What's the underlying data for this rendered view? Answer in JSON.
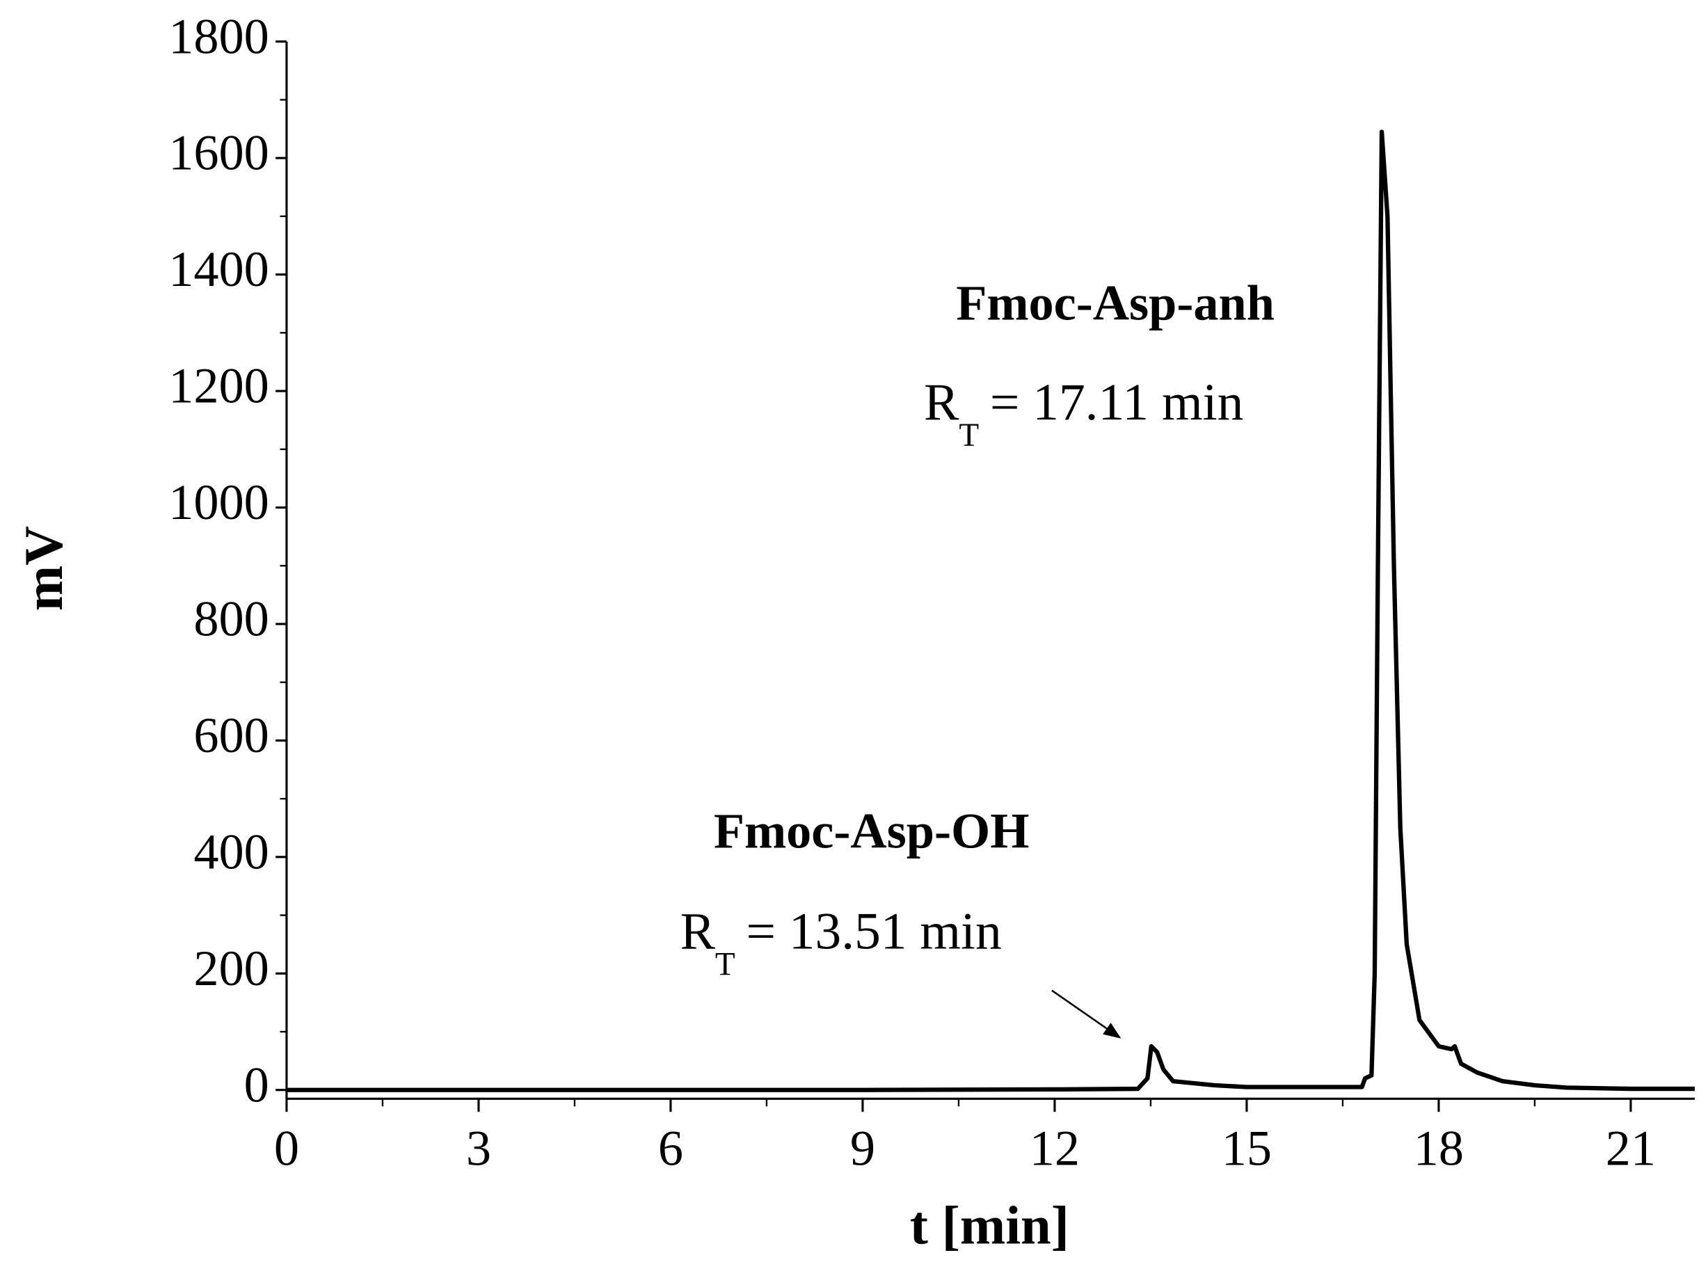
{
  "chart_data": {
    "type": "line",
    "x_label": "t [min]",
    "y_label": "mV",
    "xlim": [
      0,
      22
    ],
    "xticks": [
      0,
      3,
      6,
      9,
      12,
      15,
      18,
      21
    ],
    "ylim": [
      -15,
      1800
    ],
    "yticks": [
      0,
      200,
      400,
      600,
      800,
      1000,
      1200,
      1400,
      1600,
      1800
    ],
    "color": "#000000",
    "x": [
      0,
      9,
      12,
      13.3,
      13.45,
      13.51,
      13.6,
      13.7,
      13.85,
      14.5,
      15,
      16.8,
      16.85,
      16.95,
      17.0,
      17.05,
      17.11,
      17.2,
      17.3,
      17.4,
      17.5,
      17.7,
      18.0,
      18.2,
      18.25,
      18.35,
      18.6,
      19,
      19.5,
      20,
      21,
      22
    ],
    "values": [
      0,
      0,
      1,
      2,
      20,
      75,
      65,
      35,
      15,
      8,
      5,
      5,
      20,
      25,
      200,
      900,
      1645,
      1500,
      900,
      450,
      250,
      120,
      75,
      70,
      75,
      45,
      30,
      15,
      8,
      4,
      2,
      2
    ],
    "annotations": [
      {
        "label": "Fmoc-Asp-anh",
        "rt_symbol": "R",
        "rt_subscript": "T",
        "rt_text": "= 17.11 min"
      },
      {
        "label": "Fmoc-Asp-OH",
        "rt_symbol": "R",
        "rt_subscript": "T",
        "rt_text": "= 13.51 min"
      }
    ]
  }
}
